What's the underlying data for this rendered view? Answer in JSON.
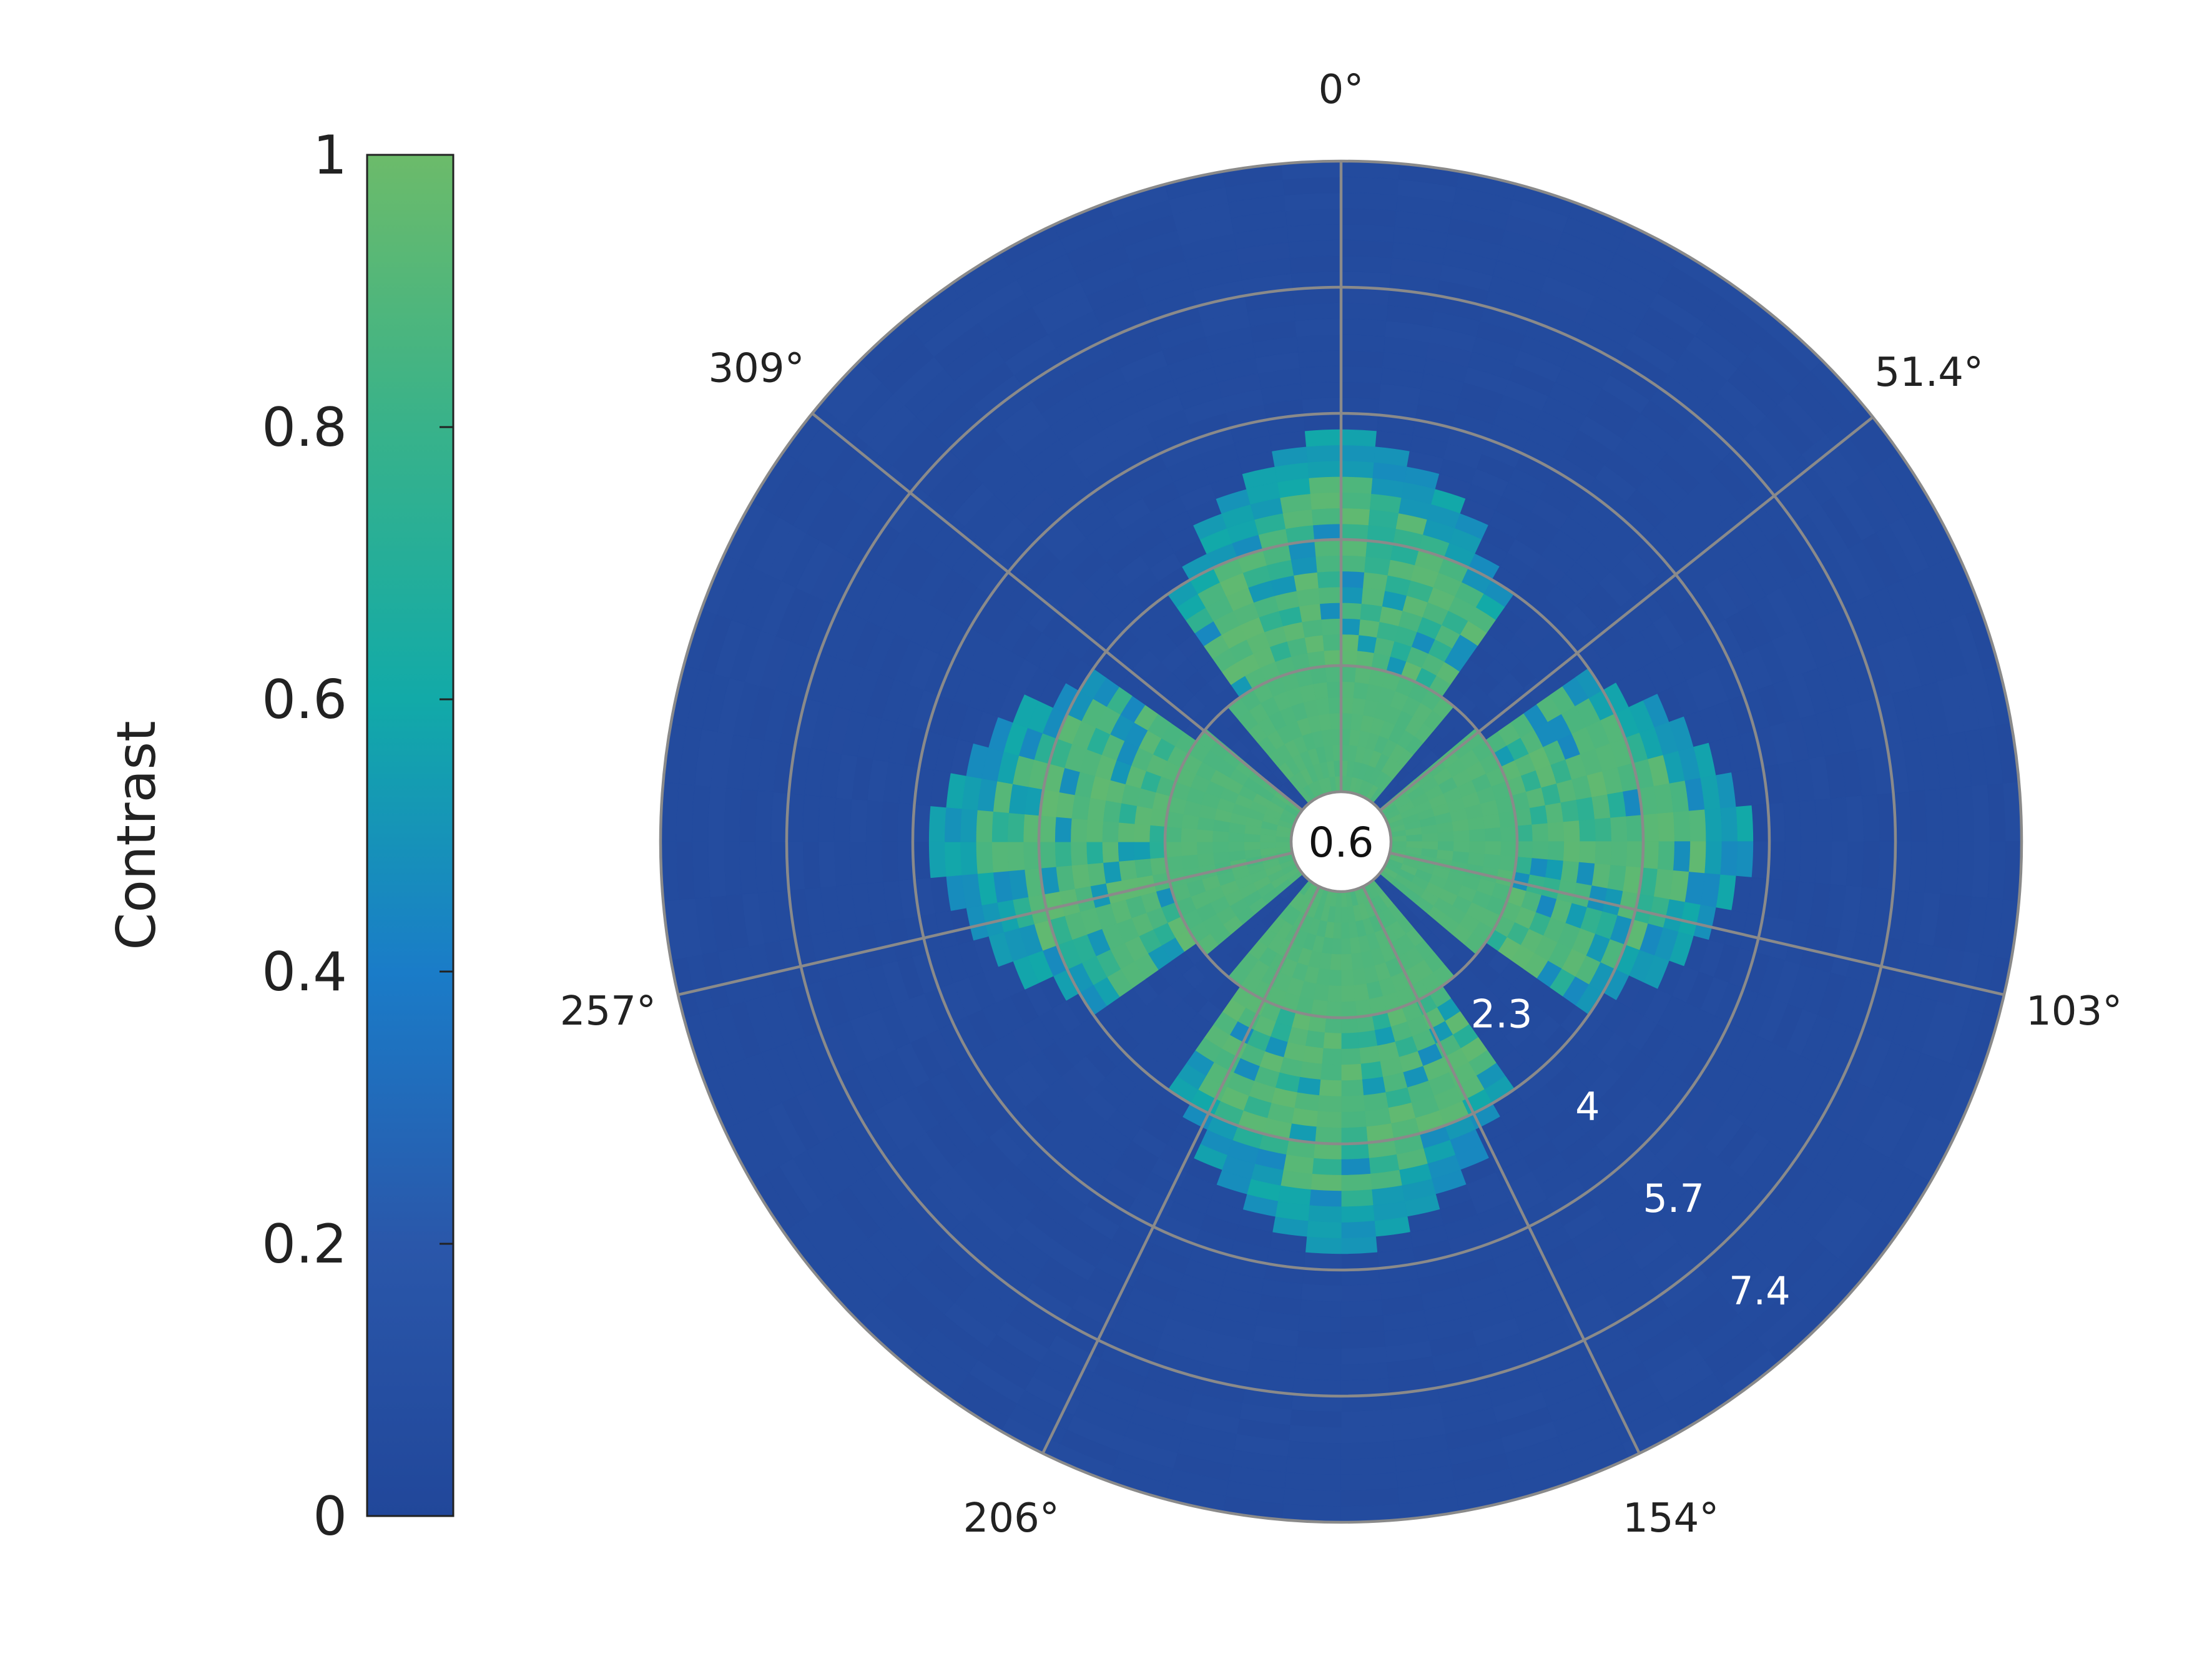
{
  "chart_data": {
    "type": "heatmap",
    "subtype": "polar",
    "colorbar": {
      "title": "Contrast",
      "range": [
        0,
        1
      ],
      "ticks": [
        "0",
        "0.2",
        "0.4",
        "0.6",
        "0.8",
        "1"
      ],
      "colormap": [
        "#21479a",
        "#2a57aa",
        "#1a7cc8",
        "#12aaa8",
        "#38b28a",
        "#6cbb6a"
      ]
    },
    "angular_axis": {
      "tick_labels": [
        "0°",
        "51.4°",
        "103°",
        "154°",
        "206°",
        "257°",
        "309°"
      ],
      "tick_degrees": [
        0,
        51.4,
        103,
        154,
        206,
        257,
        309
      ],
      "direction": "clockwise",
      "zero": "top"
    },
    "radial_axis": {
      "range": [
        0.6,
        9.1
      ],
      "tick_values": [
        0.6,
        2.3,
        4,
        5.7,
        7.4
      ],
      "tick_labels": [
        "0.6",
        "2.3",
        "4",
        "5.7",
        "7.4"
      ]
    },
    "pattern": {
      "description_values": "high contrast (~0.9) in four lobes centered at 0°, 90°, 180°, 270°; background ~0.05",
      "lobe_centers_deg": [
        0,
        90,
        180,
        270
      ],
      "lobe_halfwidth_deg": 30,
      "lobe_outer_radius": 5.0,
      "core_radius": 2.3,
      "core_value": 0.92,
      "background_value": 0.04
    },
    "grid": true
  }
}
